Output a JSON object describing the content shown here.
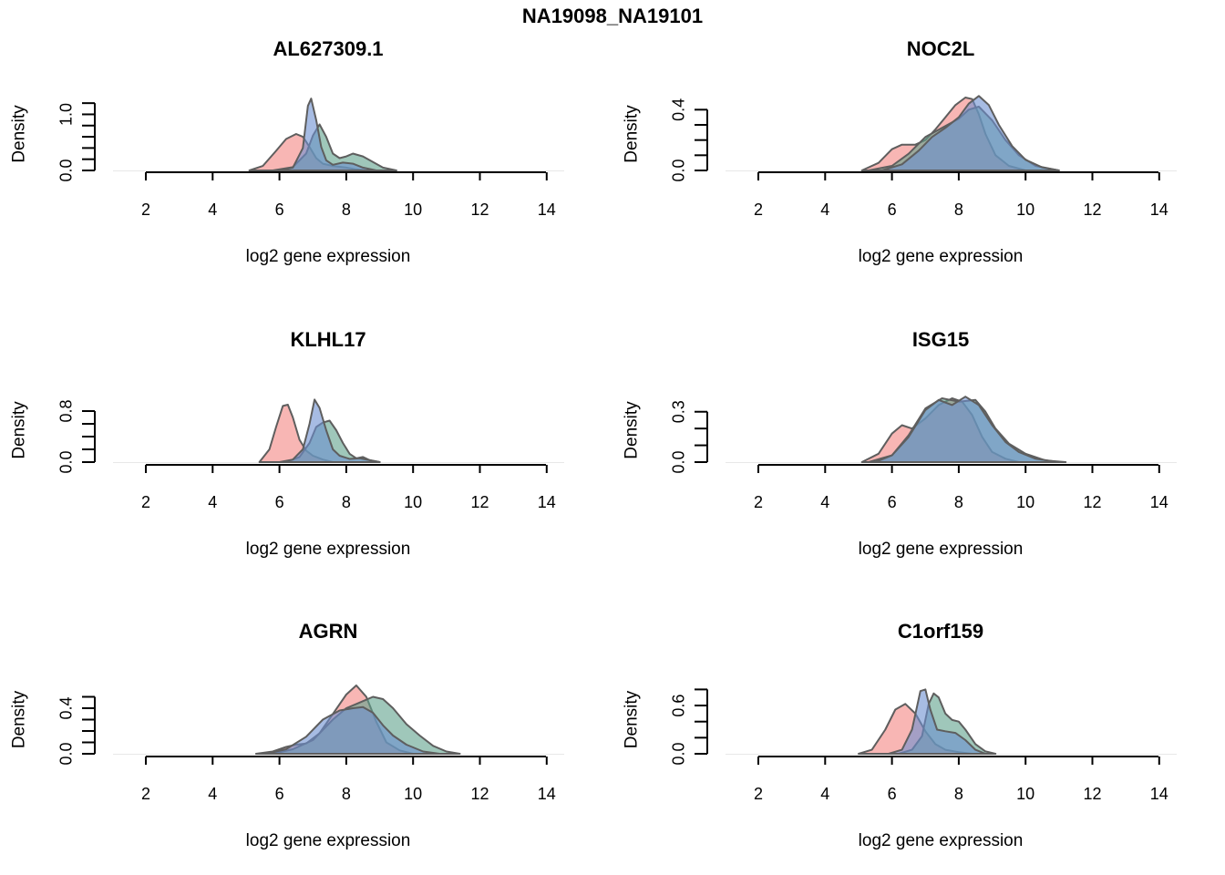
{
  "figure": {
    "title": "NA19098_NA19101",
    "colors": {
      "red": "#f59d9b",
      "green": "#5fa18c",
      "blue": "#6d8fd1",
      "outline": "#5e5e5e",
      "red_opacity": 0.75,
      "green_opacity": 0.6,
      "blue_opacity": 0.6
    }
  },
  "chart_data": [
    {
      "type": "area",
      "title": "AL627309.1",
      "xlabel": "log2 gene expression",
      "ylabel": "Density",
      "xlim": [
        0.5,
        14
      ],
      "xticks": [
        2,
        4,
        6,
        8,
        10,
        12,
        14
      ],
      "ylim": [
        0,
        1.3
      ],
      "yticks": [
        0.0,
        1.0
      ],
      "yminor": [
        0.2,
        0.4,
        0.6,
        0.8,
        1.2
      ],
      "series": [
        {
          "color": "red",
          "x": [
            5.1,
            5.5,
            5.9,
            6.2,
            6.5,
            6.7,
            6.9,
            7.1,
            7.3,
            7.6,
            8.0,
            8.3,
            8.6
          ],
          "y": [
            0.0,
            0.08,
            0.35,
            0.56,
            0.65,
            0.6,
            0.42,
            0.22,
            0.12,
            0.08,
            0.05,
            0.02,
            0.0
          ]
        },
        {
          "color": "green",
          "x": [
            5.8,
            6.4,
            6.8,
            7.0,
            7.2,
            7.4,
            7.6,
            7.8,
            8.0,
            8.2,
            8.5,
            8.8,
            9.1,
            9.5
          ],
          "y": [
            0.0,
            0.06,
            0.3,
            0.62,
            0.82,
            0.6,
            0.3,
            0.22,
            0.25,
            0.3,
            0.25,
            0.15,
            0.05,
            0.0
          ]
        },
        {
          "color": "blue",
          "x": [
            6.0,
            6.4,
            6.7,
            6.85,
            6.95,
            7.1,
            7.25,
            7.4,
            7.6,
            7.9,
            8.2,
            8.5,
            8.9
          ],
          "y": [
            0.0,
            0.05,
            0.4,
            1.15,
            1.28,
            0.9,
            0.42,
            0.18,
            0.1,
            0.14,
            0.12,
            0.05,
            0.0
          ]
        }
      ]
    },
    {
      "type": "area",
      "title": "NOC2L",
      "xlabel": "log2 gene expression",
      "ylabel": "Density",
      "xlim": [
        0.5,
        14
      ],
      "xticks": [
        2,
        4,
        6,
        8,
        10,
        12,
        14
      ],
      "ylim": [
        0,
        0.48
      ],
      "yticks": [
        0.0,
        0.4
      ],
      "yminor": [
        0.1,
        0.2,
        0.3
      ],
      "series": [
        {
          "color": "red",
          "x": [
            5.1,
            5.6,
            6.0,
            6.3,
            6.7,
            7.0,
            7.3,
            7.6,
            7.9,
            8.2,
            8.4,
            8.6,
            8.8,
            9.1,
            9.5,
            10.0
          ],
          "y": [
            0.0,
            0.05,
            0.14,
            0.17,
            0.17,
            0.2,
            0.27,
            0.35,
            0.43,
            0.48,
            0.47,
            0.37,
            0.24,
            0.1,
            0.03,
            0.0
          ]
        },
        {
          "color": "green",
          "x": [
            5.3,
            6.0,
            6.5,
            7.0,
            7.5,
            8.0,
            8.3,
            8.6,
            9.0,
            9.4,
            9.8,
            10.3,
            11.0
          ],
          "y": [
            0.0,
            0.03,
            0.11,
            0.22,
            0.28,
            0.34,
            0.4,
            0.42,
            0.33,
            0.2,
            0.1,
            0.03,
            0.0
          ]
        },
        {
          "color": "blue",
          "x": [
            5.7,
            6.3,
            6.8,
            7.2,
            7.6,
            8.0,
            8.3,
            8.6,
            8.9,
            9.2,
            9.6,
            10.0,
            10.5,
            11.0
          ],
          "y": [
            0.0,
            0.04,
            0.13,
            0.22,
            0.28,
            0.35,
            0.44,
            0.49,
            0.43,
            0.3,
            0.16,
            0.07,
            0.02,
            0.0
          ]
        }
      ]
    },
    {
      "type": "area",
      "title": "KLHL17",
      "xlabel": "log2 gene expression",
      "ylabel": "Density",
      "xlim": [
        0.5,
        14
      ],
      "xticks": [
        2,
        4,
        6,
        8,
        10,
        12,
        14
      ],
      "ylim": [
        0,
        1.0
      ],
      "yticks": [
        0.0,
        0.8
      ],
      "yminor": [
        0.2,
        0.4,
        0.6
      ],
      "series": [
        {
          "color": "red",
          "x": [
            5.4,
            5.7,
            5.9,
            6.1,
            6.25,
            6.4,
            6.6,
            6.8,
            7.0,
            7.3,
            7.6
          ],
          "y": [
            0.0,
            0.2,
            0.55,
            0.88,
            0.9,
            0.7,
            0.35,
            0.18,
            0.1,
            0.04,
            0.0
          ]
        },
        {
          "color": "green",
          "x": [
            6.2,
            6.6,
            6.9,
            7.1,
            7.3,
            7.5,
            7.7,
            7.9,
            8.1,
            8.3,
            8.5,
            8.7,
            9.0
          ],
          "y": [
            0.0,
            0.08,
            0.3,
            0.55,
            0.62,
            0.65,
            0.5,
            0.3,
            0.13,
            0.06,
            0.08,
            0.03,
            0.0
          ]
        },
        {
          "color": "blue",
          "x": [
            6.0,
            6.4,
            6.7,
            6.9,
            7.05,
            7.2,
            7.4,
            7.6,
            7.8,
            8.1,
            8.4,
            8.7,
            9.0
          ],
          "y": [
            0.0,
            0.04,
            0.2,
            0.6,
            0.98,
            0.85,
            0.5,
            0.2,
            0.1,
            0.05,
            0.06,
            0.03,
            0.0
          ]
        }
      ]
    },
    {
      "type": "area",
      "title": "ISG15",
      "xlabel": "log2 gene expression",
      "ylabel": "Density",
      "xlim": [
        0.5,
        14
      ],
      "xticks": [
        2,
        4,
        6,
        8,
        10,
        12,
        14
      ],
      "ylim": [
        0,
        0.38
      ],
      "yticks": [
        0.0,
        0.3
      ],
      "yminor": [
        0.1,
        0.2
      ],
      "series": [
        {
          "color": "red",
          "x": [
            5.1,
            5.6,
            6.0,
            6.3,
            6.6,
            7.0,
            7.4,
            7.8,
            8.1,
            8.4,
            8.7,
            9.0,
            9.4,
            9.8
          ],
          "y": [
            0.0,
            0.05,
            0.17,
            0.22,
            0.2,
            0.26,
            0.34,
            0.38,
            0.36,
            0.28,
            0.15,
            0.06,
            0.02,
            0.0
          ]
        },
        {
          "color": "green",
          "x": [
            5.3,
            6.0,
            6.5,
            7.0,
            7.5,
            8.0,
            8.5,
            8.8,
            9.1,
            9.5,
            10.0,
            10.6,
            11.2
          ],
          "y": [
            0.0,
            0.04,
            0.16,
            0.32,
            0.38,
            0.36,
            0.37,
            0.3,
            0.2,
            0.11,
            0.05,
            0.01,
            0.0
          ]
        },
        {
          "color": "blue",
          "x": [
            5.5,
            6.0,
            6.5,
            7.0,
            7.4,
            7.8,
            8.2,
            8.6,
            9.0,
            9.4,
            9.8,
            10.3,
            11.0
          ],
          "y": [
            0.0,
            0.04,
            0.15,
            0.31,
            0.37,
            0.34,
            0.39,
            0.34,
            0.22,
            0.12,
            0.06,
            0.02,
            0.0
          ]
        }
      ]
    },
    {
      "type": "area",
      "title": "AGRN",
      "xlabel": "log2 gene expression",
      "ylabel": "Density",
      "xlim": [
        0.5,
        14
      ],
      "xticks": [
        2,
        4,
        6,
        8,
        10,
        12,
        14
      ],
      "ylim": [
        0,
        0.6
      ],
      "yticks": [
        0.0,
        0.4
      ],
      "yminor": [
        0.1,
        0.2,
        0.3,
        0.5
      ],
      "series": [
        {
          "color": "red",
          "x": [
            5.3,
            5.8,
            6.2,
            6.5,
            6.8,
            7.2,
            7.6,
            8.0,
            8.3,
            8.6,
            8.9,
            9.2,
            9.6,
            10.0
          ],
          "y": [
            0.0,
            0.02,
            0.06,
            0.08,
            0.09,
            0.18,
            0.35,
            0.52,
            0.6,
            0.5,
            0.28,
            0.1,
            0.03,
            0.0
          ]
        },
        {
          "color": "green",
          "x": [
            5.8,
            6.4,
            7.0,
            7.6,
            8.0,
            8.4,
            8.8,
            9.1,
            9.4,
            9.8,
            10.2,
            10.6,
            11.0,
            11.4
          ],
          "y": [
            0.0,
            0.04,
            0.12,
            0.3,
            0.4,
            0.45,
            0.5,
            0.48,
            0.4,
            0.26,
            0.16,
            0.07,
            0.02,
            0.0
          ]
        },
        {
          "color": "blue",
          "x": [
            5.6,
            6.2,
            6.8,
            7.3,
            7.8,
            8.2,
            8.5,
            8.8,
            9.1,
            9.4,
            9.8,
            10.3,
            10.8
          ],
          "y": [
            0.0,
            0.04,
            0.15,
            0.3,
            0.38,
            0.4,
            0.41,
            0.36,
            0.25,
            0.16,
            0.08,
            0.02,
            0.0
          ]
        }
      ]
    },
    {
      "type": "area",
      "title": "C1orf159",
      "xlabel": "log2 gene expression",
      "ylabel": "Density",
      "xlim": [
        0.5,
        14
      ],
      "xticks": [
        2,
        4,
        6,
        8,
        10,
        12,
        14
      ],
      "ylim": [
        0,
        0.85
      ],
      "yticks": [
        0.0,
        0.6
      ],
      "yminor": [
        0.2,
        0.4,
        0.8
      ],
      "series": [
        {
          "color": "red",
          "x": [
            5.0,
            5.4,
            5.8,
            6.1,
            6.4,
            6.7,
            7.0,
            7.3,
            7.6,
            8.0,
            8.4
          ],
          "y": [
            0.0,
            0.05,
            0.3,
            0.55,
            0.62,
            0.5,
            0.28,
            0.12,
            0.05,
            0.02,
            0.0
          ]
        },
        {
          "color": "green",
          "x": [
            6.2,
            6.6,
            6.9,
            7.1,
            7.25,
            7.4,
            7.6,
            7.8,
            8.0,
            8.2,
            8.5,
            8.8,
            9.1
          ],
          "y": [
            0.0,
            0.05,
            0.22,
            0.62,
            0.75,
            0.7,
            0.5,
            0.42,
            0.4,
            0.3,
            0.12,
            0.03,
            0.0
          ]
        },
        {
          "color": "blue",
          "x": [
            5.9,
            6.3,
            6.6,
            6.85,
            7.0,
            7.15,
            7.35,
            7.6,
            7.9,
            8.2,
            8.5,
            8.8
          ],
          "y": [
            0.0,
            0.05,
            0.3,
            0.78,
            0.8,
            0.55,
            0.3,
            0.28,
            0.26,
            0.17,
            0.05,
            0.0
          ]
        }
      ]
    }
  ]
}
